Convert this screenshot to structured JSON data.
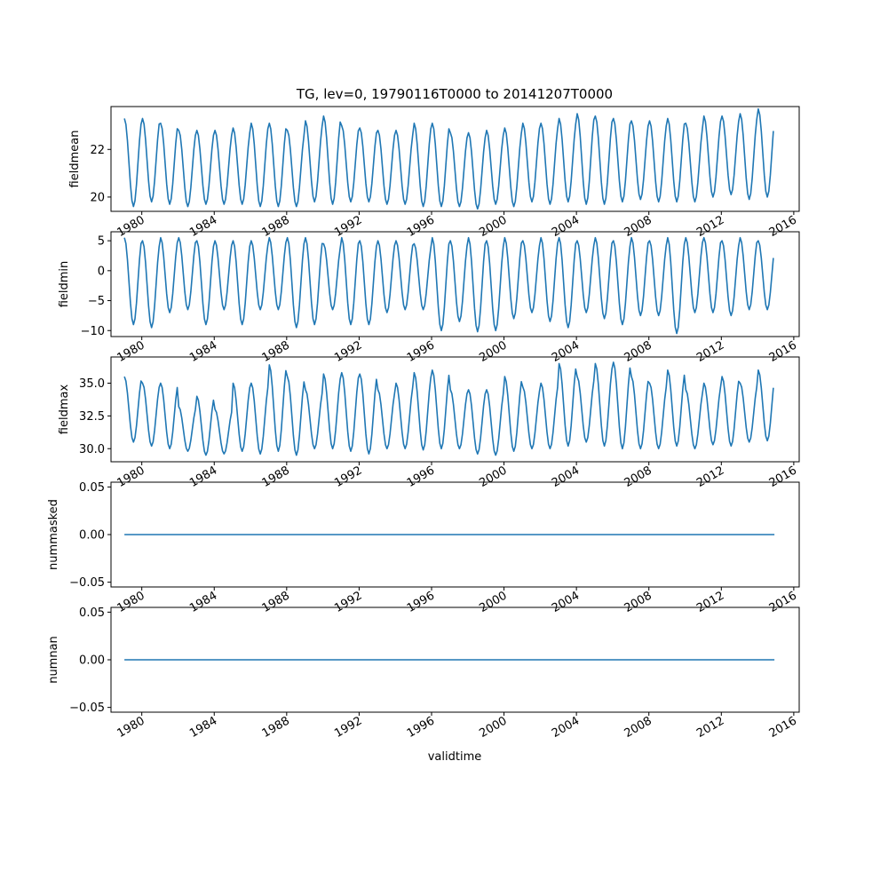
{
  "title": "TG, lev=0, 19790116T0000 to 20141207T0000",
  "xlabel": "validtime",
  "line_color": "#1f77b4",
  "chart_data": [
    {
      "type": "line",
      "name": "fieldmean",
      "ylabel": "fieldmean",
      "yticks": [
        "20",
        "22"
      ],
      "ytick_values": [
        20,
        22
      ],
      "ylim": [
        19.4,
        23.8
      ],
      "xlim": [
        1978.3,
        2016.3
      ],
      "x_range": [
        1979.04,
        2014.93
      ],
      "xticks": [
        "1980",
        "1984",
        "1988",
        "1992",
        "1996",
        "2000",
        "2004",
        "2008",
        "2012",
        "2016"
      ],
      "annual_min": [
        19.6,
        19.8,
        19.7,
        19.6,
        19.7,
        19.7,
        19.7,
        19.6,
        19.6,
        19.6,
        19.8,
        19.7,
        19.8,
        19.8,
        19.7,
        19.7,
        19.6,
        19.6,
        19.6,
        19.5,
        19.7,
        19.6,
        19.8,
        19.7,
        19.8,
        19.7,
        19.7,
        19.8,
        19.9,
        19.8,
        19.8,
        19.8,
        20.0,
        20.1,
        19.9,
        20.0
      ],
      "annual_max": [
        23.3,
        23.3,
        23.1,
        22.8,
        22.8,
        22.8,
        22.9,
        23.1,
        23.1,
        22.8,
        23.2,
        23.4,
        23.0,
        22.9,
        22.8,
        22.8,
        23.1,
        23.1,
        22.7,
        22.7,
        22.8,
        22.9,
        23.1,
        23.1,
        23.3,
        23.5,
        23.4,
        23.3,
        23.2,
        23.2,
        23.3,
        23.1,
        23.4,
        23.4,
        23.5,
        23.7
      ]
    },
    {
      "type": "line",
      "name": "fieldmin",
      "ylabel": "fieldmin",
      "yticks": [
        "−10",
        "−5",
        "0",
        "5"
      ],
      "ytick_values": [
        -10,
        -5,
        0,
        5
      ],
      "ylim": [
        -11.0,
        6.5
      ],
      "xlim": [
        1978.3,
        2016.3
      ],
      "x_range": [
        1979.04,
        2014.93
      ],
      "xticks": [
        "1980",
        "1984",
        "1988",
        "1992",
        "1996",
        "2000",
        "2004",
        "2008",
        "2012",
        "2016"
      ],
      "annual_min": [
        -9.0,
        -9.5,
        -7.0,
        -6.5,
        -9.0,
        -6.5,
        -9.0,
        -6.5,
        -6.5,
        -9.5,
        -9.0,
        -6.5,
        -9.0,
        -9.0,
        -7.0,
        -6.5,
        -6.5,
        -10.0,
        -8.5,
        -10.2,
        -10.0,
        -8.0,
        -7.0,
        -8.5,
        -9.5,
        -7.0,
        -8.0,
        -9.0,
        -7.5,
        -7.5,
        -10.5,
        -7.0,
        -7.0,
        -7.5,
        -6.5,
        -6.5
      ],
      "annual_max": [
        5.5,
        5.0,
        5.5,
        5.5,
        5.0,
        5.0,
        5.0,
        5.0,
        5.5,
        5.5,
        5.5,
        4.5,
        5.5,
        5.0,
        5.0,
        5.0,
        4.5,
        5.5,
        5.0,
        5.5,
        5.0,
        5.5,
        5.0,
        5.5,
        5.5,
        5.0,
        5.5,
        5.0,
        5.5,
        5.0,
        5.5,
        5.5,
        5.5,
        5.0,
        5.5,
        5.0
      ]
    },
    {
      "type": "line",
      "name": "fieldmax",
      "ylabel": "fieldmax",
      "yticks": [
        "30.0",
        "32.5",
        "35.0"
      ],
      "ytick_values": [
        30.0,
        32.5,
        35.0
      ],
      "ylim": [
        29.0,
        37.0
      ],
      "xlim": [
        1978.3,
        2016.3
      ],
      "x_range": [
        1979.04,
        2014.93
      ],
      "xticks": [
        "1980",
        "1984",
        "1988",
        "1992",
        "1996",
        "2000",
        "2004",
        "2008",
        "2012",
        "2016"
      ],
      "annual_min": [
        30.5,
        30.2,
        30.0,
        29.8,
        29.5,
        29.6,
        29.8,
        29.6,
        29.8,
        29.5,
        30.0,
        30.0,
        29.8,
        29.6,
        30.0,
        30.0,
        29.9,
        30.0,
        30.0,
        29.6,
        29.5,
        29.8,
        30.0,
        30.0,
        30.2,
        30.5,
        30.2,
        30.0,
        30.0,
        30.0,
        30.2,
        30.0,
        30.3,
        30.2,
        30.5,
        30.6
      ],
      "annual_max": [
        35.5,
        35.0,
        35.0,
        33.2,
        34.0,
        33.0,
        35.0,
        35.0,
        36.4,
        35.5,
        34.5,
        35.7,
        35.8,
        35.7,
        34.5,
        35.0,
        35.8,
        36.0,
        34.5,
        34.5,
        34.5,
        35.5,
        34.7,
        35.0,
        36.5,
        35.5,
        36.5,
        36.6,
        35.5,
        35.0,
        36.0,
        34.5,
        35.0,
        35.5,
        35.0,
        36.0
      ]
    },
    {
      "type": "line",
      "name": "nummasked",
      "ylabel": "nummasked",
      "yticks": [
        "−0.05",
        "0.00",
        "0.05"
      ],
      "ytick_values": [
        -0.05,
        0.0,
        0.05
      ],
      "ylim": [
        -0.055,
        0.055
      ],
      "xlim": [
        1978.3,
        2016.3
      ],
      "x_range": [
        1979.04,
        2014.93
      ],
      "xticks": [
        "1980",
        "1984",
        "1988",
        "1992",
        "1996",
        "2000",
        "2004",
        "2008",
        "2012",
        "2016"
      ],
      "constant_value": 0.0
    },
    {
      "type": "line",
      "name": "numnan",
      "ylabel": "numnan",
      "yticks": [
        "−0.05",
        "0.00",
        "0.05"
      ],
      "ytick_values": [
        -0.05,
        0.0,
        0.05
      ],
      "ylim": [
        -0.055,
        0.055
      ],
      "xlim": [
        1978.3,
        2016.3
      ],
      "x_range": [
        1979.04,
        2014.93
      ],
      "xticks": [
        "1980",
        "1984",
        "1988",
        "1992",
        "1996",
        "2000",
        "2004",
        "2008",
        "2012",
        "2016"
      ],
      "constant_value": 0.0
    }
  ]
}
